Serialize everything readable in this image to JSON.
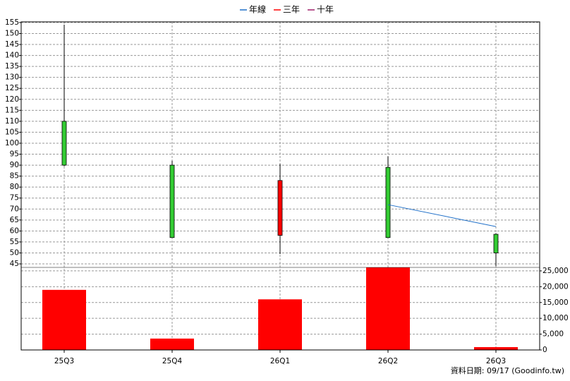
{
  "chart_data": {
    "type": "candlestick",
    "categories": [
      "25Q3",
      "25Q4",
      "26Q1",
      "26Q2",
      "26Q3"
    ],
    "open": [
      110,
      90,
      58,
      89,
      58.5
    ],
    "high": [
      154,
      92,
      90.5,
      94,
      59
    ],
    "low": [
      89.5,
      57,
      49.5,
      57,
      44
    ],
    "close": [
      90,
      57,
      83,
      57,
      50
    ],
    "up_color": "#ff0000",
    "down_color": "#33cc33",
    "series": [
      {
        "name": "年線",
        "color": "#1e6fc8",
        "values": [
          null,
          null,
          null,
          72,
          62
        ]
      },
      {
        "name": "三年",
        "color": "#ff0000",
        "values": [
          null,
          null,
          null,
          null,
          null
        ]
      },
      {
        "name": "十年",
        "color": "#a0206a",
        "values": [
          null,
          null,
          null,
          null,
          null
        ]
      }
    ],
    "ylim": [
      43.4,
      155.3
    ],
    "yticks": [
      45,
      50,
      55,
      60,
      65,
      70,
      75,
      80,
      85,
      90,
      95,
      100,
      105,
      110,
      115,
      120,
      125,
      130,
      135,
      140,
      145,
      150,
      155
    ],
    "volume": {
      "color": "#ff0000",
      "values": [
        19000,
        3600,
        16000,
        26100,
        900
      ]
    },
    "y2lim": [
      0,
      26100
    ],
    "y2ticks": [
      0,
      {
        "value": 5000,
        "label": "5,000"
      },
      {
        "value": 10000,
        "label": "10,000"
      },
      {
        "value": 15000,
        "label": "15,000"
      },
      {
        "value": 20000,
        "label": "20,000"
      },
      {
        "value": 25000,
        "label": "25,000"
      }
    ],
    "grid": true,
    "footer": "資料日期: 09/17  (Goodinfo.tw)"
  }
}
